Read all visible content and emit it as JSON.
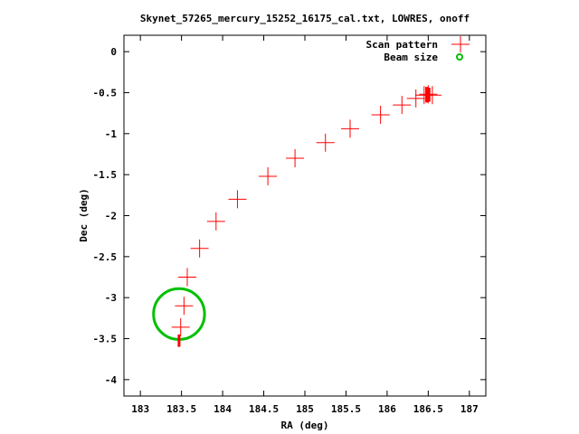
{
  "chart_data": {
    "type": "scatter",
    "title": "Skynet_57265_mercury_15252_16175_cal.txt, LOWRES, onoff",
    "xlabel": "RA (deg)",
    "ylabel": "Dec (deg)",
    "xlim": [
      182.8,
      187.2
    ],
    "ylim": [
      -4.2,
      0.2
    ],
    "xticks": [
      183,
      183.5,
      184,
      184.5,
      185,
      185.5,
      186,
      186.5,
      187
    ],
    "xtick_labels": [
      "183",
      "183.5",
      "184",
      "184.5",
      "185",
      "185.5",
      "186",
      "186.5",
      "187"
    ],
    "yticks": [
      0,
      -0.5,
      -1,
      -1.5,
      -2,
      -2.5,
      -3,
      -3.5,
      -4
    ],
    "ytick_labels": [
      "0",
      "-0.5",
      "-1",
      "-1.5",
      "-2",
      "-2.5",
      "-3",
      "-3.5",
      "-4"
    ],
    "legend_position": "top-right",
    "grid": false,
    "series": [
      {
        "name": "Scan pattern",
        "marker": "plus",
        "color": "#ff0000",
        "points": [
          [
            183.49,
            -3.36
          ],
          [
            183.53,
            -3.1
          ],
          [
            183.57,
            -2.75
          ],
          [
            183.72,
            -2.4
          ],
          [
            183.92,
            -2.07
          ],
          [
            184.18,
            -1.8
          ],
          [
            184.55,
            -1.52
          ],
          [
            184.88,
            -1.3
          ],
          [
            185.25,
            -1.11
          ],
          [
            185.55,
            -0.94
          ],
          [
            185.92,
            -0.77
          ],
          [
            186.18,
            -0.65
          ],
          [
            186.35,
            -0.57
          ],
          [
            186.45,
            -0.53
          ],
          [
            186.5,
            -0.52
          ],
          [
            186.55,
            -0.53
          ]
        ],
        "dense_segments": [
          {
            "x": 183.47,
            "y_from": -3.45,
            "y_to": -3.6
          },
          {
            "x": 186.48,
            "y_from": -0.43,
            "y_to": -0.62
          },
          {
            "x": 186.51,
            "y_from": -0.44,
            "y_to": -0.61
          }
        ]
      },
      {
        "name": "Beam size",
        "marker": "circle",
        "color": "#00c000",
        "center": [
          183.47,
          -3.2
        ],
        "radius_deg": 0.31
      }
    ]
  }
}
